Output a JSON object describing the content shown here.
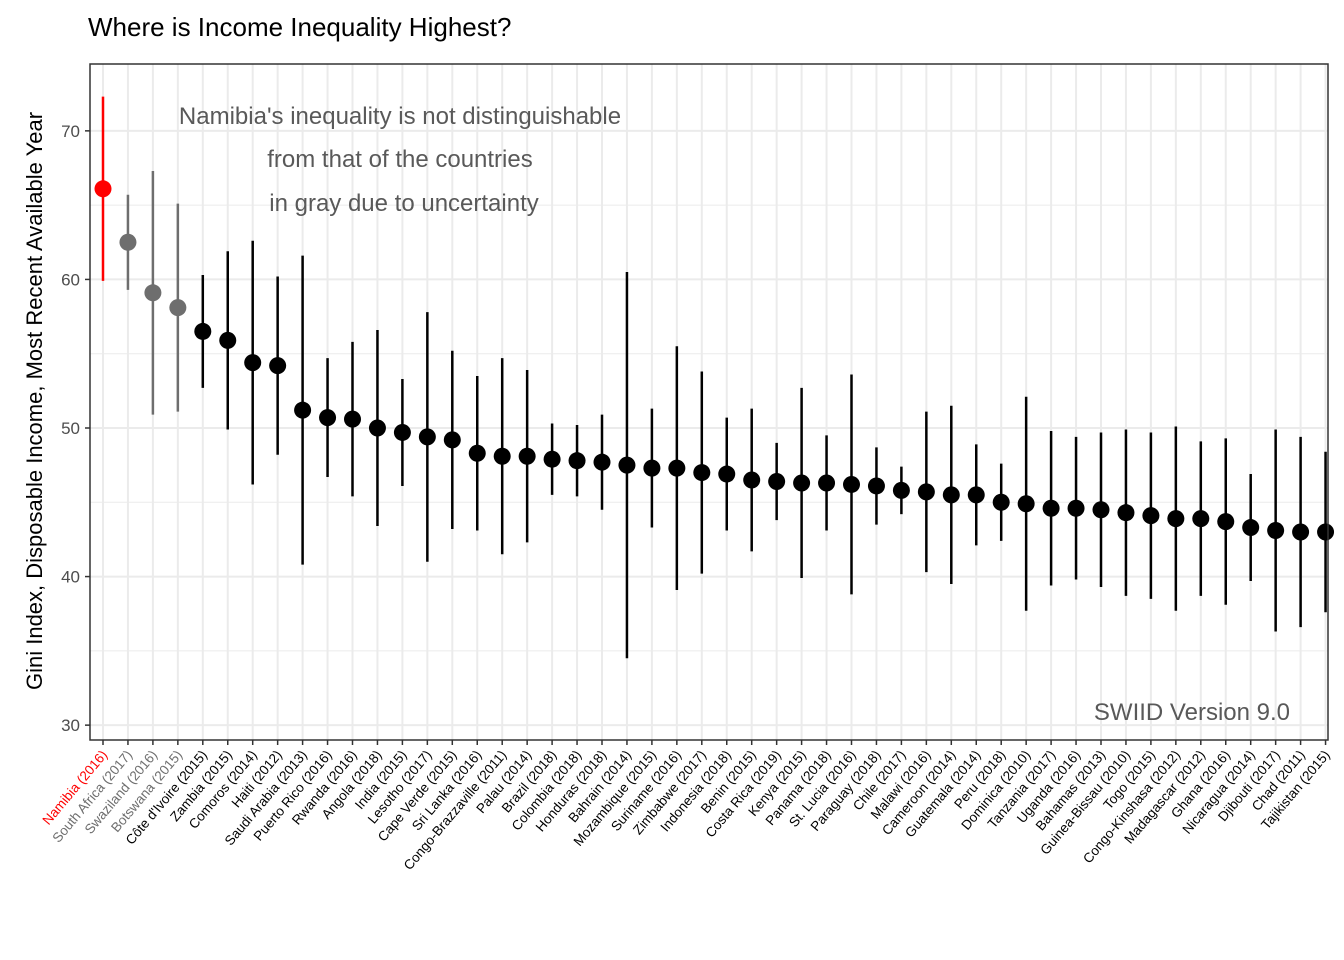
{
  "chart_data": {
    "type": "scatter",
    "title": "Where is Income Inequality Highest?",
    "xlabel": "",
    "ylabel": "Gini Index, Disposable Income, Most Recent Available Year",
    "ylim": [
      29,
      74.5
    ],
    "yticks": [
      30,
      40,
      50,
      60,
      70
    ],
    "grid": true,
    "legend": "none",
    "error_bars": true,
    "annotation": [
      "Namibia's inequality is not distinguishable",
      "from that of the countries",
      "in gray due to uncertainty"
    ],
    "source_note": "SWIID Version 9.0",
    "colors": {
      "highlight": "#ff0000",
      "indistinguishable": "#6e6e6e",
      "default": "#000000"
    },
    "points": [
      {
        "label": "Namibia (2016)",
        "value": 66.1,
        "low": 59.9,
        "high": 72.3,
        "group": "highlight"
      },
      {
        "label": "South Africa (2017)",
        "value": 62.5,
        "low": 59.3,
        "high": 65.7,
        "group": "indistinguishable"
      },
      {
        "label": "Swaziland (2016)",
        "value": 59.1,
        "low": 50.9,
        "high": 67.3,
        "group": "indistinguishable"
      },
      {
        "label": "Botswana (2015)",
        "value": 58.1,
        "low": 51.1,
        "high": 65.1,
        "group": "indistinguishable"
      },
      {
        "label": "Côte d'Ivoire (2015)",
        "value": 56.5,
        "low": 52.7,
        "high": 60.3,
        "group": "default"
      },
      {
        "label": "Zambia (2015)",
        "value": 55.9,
        "low": 49.9,
        "high": 61.9,
        "group": "default"
      },
      {
        "label": "Comoros (2014)",
        "value": 54.4,
        "low": 46.2,
        "high": 62.6,
        "group": "default"
      },
      {
        "label": "Haiti (2012)",
        "value": 54.2,
        "low": 48.2,
        "high": 60.2,
        "group": "default"
      },
      {
        "label": "Saudi Arabia (2013)",
        "value": 51.2,
        "low": 40.8,
        "high": 61.6,
        "group": "default"
      },
      {
        "label": "Puerto Rico (2016)",
        "value": 50.7,
        "low": 46.7,
        "high": 54.7,
        "group": "default"
      },
      {
        "label": "Rwanda (2016)",
        "value": 50.6,
        "low": 45.4,
        "high": 55.8,
        "group": "default"
      },
      {
        "label": "Angola (2018)",
        "value": 50.0,
        "low": 43.4,
        "high": 56.6,
        "group": "default"
      },
      {
        "label": "India (2015)",
        "value": 49.7,
        "low": 46.1,
        "high": 53.3,
        "group": "default"
      },
      {
        "label": "Lesotho (2017)",
        "value": 49.4,
        "low": 41.0,
        "high": 57.8,
        "group": "default"
      },
      {
        "label": "Cape Verde (2015)",
        "value": 49.2,
        "low": 43.2,
        "high": 55.2,
        "group": "default"
      },
      {
        "label": "Sri Lanka (2016)",
        "value": 48.3,
        "low": 43.1,
        "high": 53.5,
        "group": "default"
      },
      {
        "label": "Congo-Brazzaville (2011)",
        "value": 48.1,
        "low": 41.5,
        "high": 54.7,
        "group": "default"
      },
      {
        "label": "Palau (2014)",
        "value": 48.1,
        "low": 42.3,
        "high": 53.9,
        "group": "default"
      },
      {
        "label": "Brazil (2018)",
        "value": 47.9,
        "low": 45.5,
        "high": 50.3,
        "group": "default"
      },
      {
        "label": "Colombia (2018)",
        "value": 47.8,
        "low": 45.4,
        "high": 50.2,
        "group": "default"
      },
      {
        "label": "Honduras (2018)",
        "value": 47.7,
        "low": 44.5,
        "high": 50.9,
        "group": "default"
      },
      {
        "label": "Bahrain (2014)",
        "value": 47.5,
        "low": 34.5,
        "high": 60.5,
        "group": "default"
      },
      {
        "label": "Mozambique (2015)",
        "value": 47.3,
        "low": 43.3,
        "high": 51.3,
        "group": "default"
      },
      {
        "label": "Suriname (2016)",
        "value": 47.3,
        "low": 39.1,
        "high": 55.5,
        "group": "default"
      },
      {
        "label": "Zimbabwe (2017)",
        "value": 47.0,
        "low": 40.2,
        "high": 53.8,
        "group": "default"
      },
      {
        "label": "Indonesia (2018)",
        "value": 46.9,
        "low": 43.1,
        "high": 50.7,
        "group": "default"
      },
      {
        "label": "Benin (2015)",
        "value": 46.5,
        "low": 41.7,
        "high": 51.3,
        "group": "default"
      },
      {
        "label": "Costa Rica (2019)",
        "value": 46.4,
        "low": 43.8,
        "high": 49.0,
        "group": "default"
      },
      {
        "label": "Kenya (2015)",
        "value": 46.3,
        "low": 39.9,
        "high": 52.7,
        "group": "default"
      },
      {
        "label": "Panama (2018)",
        "value": 46.3,
        "low": 43.1,
        "high": 49.5,
        "group": "default"
      },
      {
        "label": "St. Lucia (2016)",
        "value": 46.2,
        "low": 38.8,
        "high": 53.6,
        "group": "default"
      },
      {
        "label": "Paraguay (2018)",
        "value": 46.1,
        "low": 43.5,
        "high": 48.7,
        "group": "default"
      },
      {
        "label": "Chile (2017)",
        "value": 45.8,
        "low": 44.2,
        "high": 47.4,
        "group": "default"
      },
      {
        "label": "Malawi (2016)",
        "value": 45.7,
        "low": 40.3,
        "high": 51.1,
        "group": "default"
      },
      {
        "label": "Cameroon (2014)",
        "value": 45.5,
        "low": 39.5,
        "high": 51.5,
        "group": "default"
      },
      {
        "label": "Guatemala (2014)",
        "value": 45.5,
        "low": 42.1,
        "high": 48.9,
        "group": "default"
      },
      {
        "label": "Peru (2018)",
        "value": 45.0,
        "low": 42.4,
        "high": 47.6,
        "group": "default"
      },
      {
        "label": "Dominica (2010)",
        "value": 44.9,
        "low": 37.7,
        "high": 52.1,
        "group": "default"
      },
      {
        "label": "Tanzania (2017)",
        "value": 44.6,
        "low": 39.4,
        "high": 49.8,
        "group": "default"
      },
      {
        "label": "Uganda (2016)",
        "value": 44.6,
        "low": 39.8,
        "high": 49.4,
        "group": "default"
      },
      {
        "label": "Bahamas (2013)",
        "value": 44.5,
        "low": 39.3,
        "high": 49.7,
        "group": "default"
      },
      {
        "label": "Guinea-Bissau (2010)",
        "value": 44.3,
        "low": 38.7,
        "high": 49.9,
        "group": "default"
      },
      {
        "label": "Togo (2015)",
        "value": 44.1,
        "low": 38.5,
        "high": 49.7,
        "group": "default"
      },
      {
        "label": "Congo-Kinshasa (2012)",
        "value": 43.9,
        "low": 37.7,
        "high": 50.1,
        "group": "default"
      },
      {
        "label": "Madagascar (2012)",
        "value": 43.9,
        "low": 38.7,
        "high": 49.1,
        "group": "default"
      },
      {
        "label": "Ghana (2016)",
        "value": 43.7,
        "low": 38.1,
        "high": 49.3,
        "group": "default"
      },
      {
        "label": "Nicaragua (2014)",
        "value": 43.3,
        "low": 39.7,
        "high": 46.9,
        "group": "default"
      },
      {
        "label": "Djibouti (2017)",
        "value": 43.1,
        "low": 36.3,
        "high": 49.9,
        "group": "default"
      },
      {
        "label": "Chad (2011)",
        "value": 43.0,
        "low": 36.6,
        "high": 49.4,
        "group": "default"
      },
      {
        "label": "Tajikistan (2015)",
        "value": 43.0,
        "low": 37.6,
        "high": 48.4,
        "group": "default"
      }
    ]
  }
}
